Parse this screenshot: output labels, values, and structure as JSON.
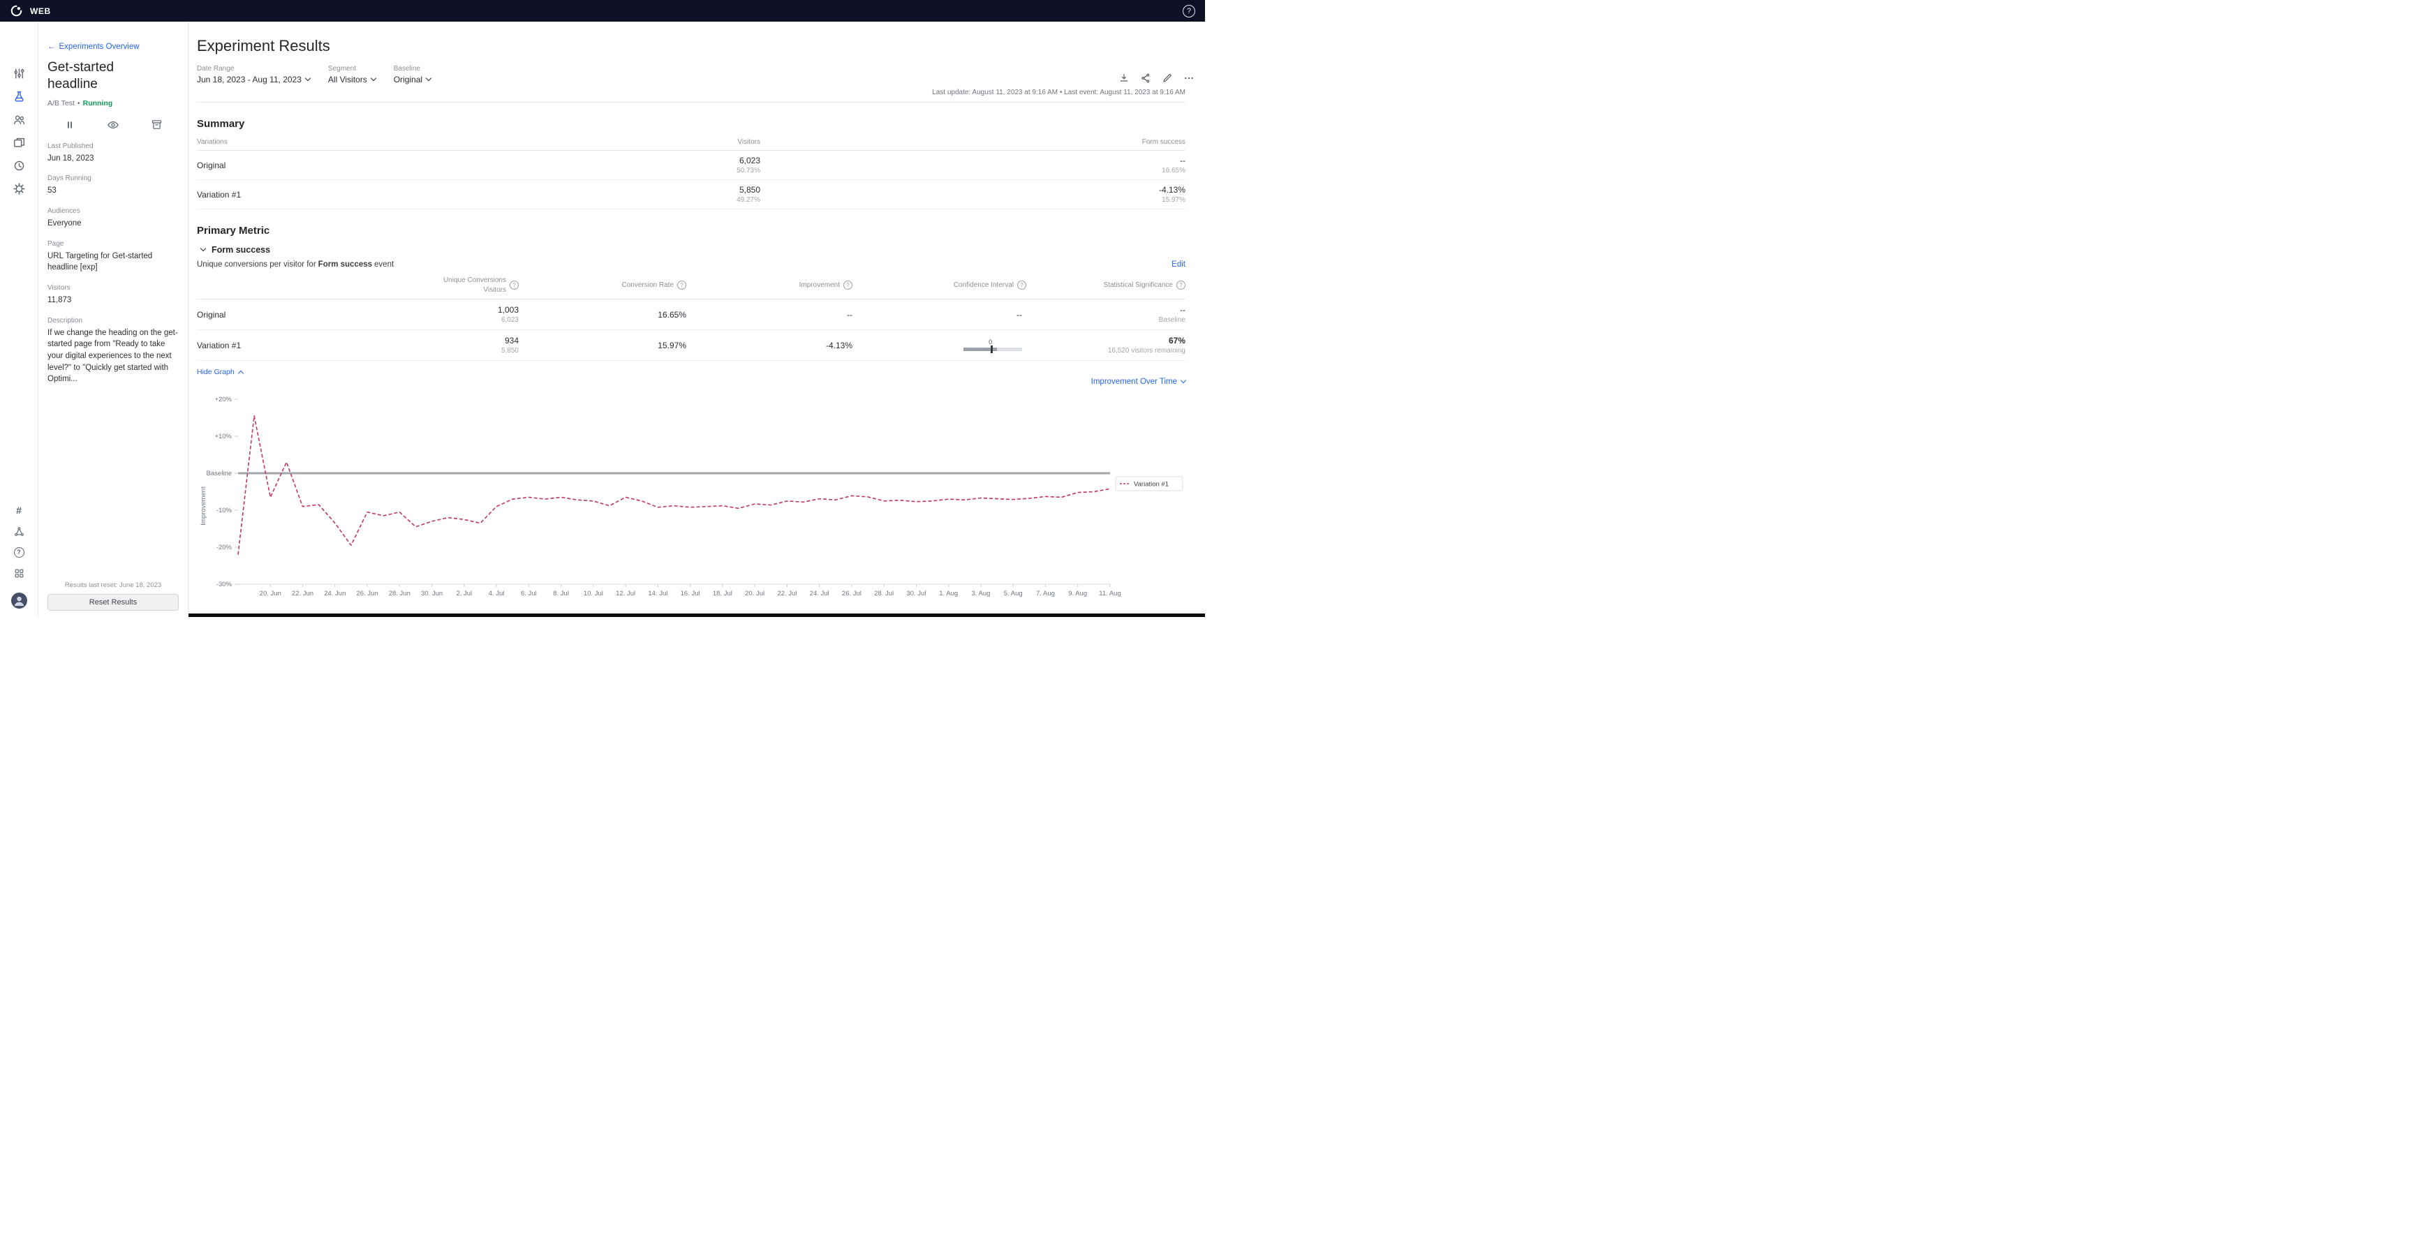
{
  "colors": {
    "accent": "#2563eb",
    "running_green": "#0f9d58",
    "chart_line": "#c13568",
    "baseline_gray": "#a2a7ad",
    "topbar_bg": "#0e1126"
  },
  "topbar": {
    "app_label": "WEB",
    "help_icon": "?"
  },
  "rail": {
    "top_icons": [
      "variations-icon",
      "flask-icon",
      "audiences-icon",
      "pages-icon",
      "history-icon",
      "settings-icon"
    ],
    "active_icon": "flask-icon",
    "bottom_icons": [
      "hash-icon",
      "network-icon",
      "help-icon",
      "apps-icon",
      "avatar"
    ],
    "hash_glyph": "#",
    "help_glyph": "?"
  },
  "sidebar": {
    "back_link": "Experiments Overview",
    "experiment_title": "Get-started headline",
    "experiment_type": "A/B Test",
    "status_separator": "•",
    "status": "Running",
    "fields": [
      {
        "label": "Last Published",
        "value": "Jun 18, 2023"
      },
      {
        "label": "Days Running",
        "value": "53"
      },
      {
        "label": "Audiences",
        "value": "Everyone"
      },
      {
        "label": "Page",
        "value": "URL Targeting for Get-started headline [exp]"
      },
      {
        "label": "Visitors",
        "value": "11,873"
      },
      {
        "label": "Description",
        "value": "If we change the heading on the get-started page from \"Ready to take your digital experiences to the next level?\" to \"Quickly get started with Optimi..."
      }
    ],
    "reset_note": "Results last reset: June 18, 2023",
    "reset_button": "Reset Results"
  },
  "header": {
    "title": "Experiment Results",
    "filters": [
      {
        "label": "Date Range",
        "value": "Jun 18, 2023 - Aug 11, 2023"
      },
      {
        "label": "Segment",
        "value": "All Visitors"
      },
      {
        "label": "Baseline",
        "value": "Original"
      }
    ],
    "action_icons": [
      "download-icon",
      "share-icon",
      "edit-icon",
      "more-icon"
    ],
    "last_update": "Last update: August 11, 2023 at 9:16 AM • Last event: August 11, 2023 at 9:16 AM"
  },
  "summary": {
    "title": "Summary",
    "columns": [
      "Variations",
      "Visitors",
      "Form success"
    ],
    "rows": [
      {
        "name": "Original",
        "visitors": "6,023",
        "visitors_sub": "50.73%",
        "metric": "--",
        "metric_sub": "16.65%"
      },
      {
        "name": "Variation #1",
        "visitors": "5,850",
        "visitors_sub": "49.27%",
        "metric": "-4.13%",
        "metric_sub": "15.97%"
      }
    ]
  },
  "primary_metric": {
    "section_title": "Primary Metric",
    "metric_name": "Form success",
    "desc_prefix": "Unique conversions per visitor for",
    "desc_metric": "Form success",
    "desc_suffix": "event",
    "edit_label": "Edit",
    "columns": {
      "conversions_line1": "Unique Conversions",
      "conversions_line2": "Visitors",
      "rate": "Conversion Rate",
      "improvement": "Improvement",
      "confidence": "Confidence Interval",
      "significance": "Statistical Significance"
    },
    "rows": [
      {
        "name": "Original",
        "conversions": "1,003",
        "visitors": "6,023",
        "rate": "16.65%",
        "improvement": "--",
        "confidence": "--",
        "significance": "--",
        "significance_sub": "Baseline"
      },
      {
        "name": "Variation #1",
        "conversions": "934",
        "visitors": "5,850",
        "rate": "15.97%",
        "improvement": "-4.13%",
        "ci_zero": "0",
        "significance": "67%",
        "significance_sub": "16,520 visitors remaining"
      }
    ],
    "hide_graph_label": "Hide Graph",
    "improvement_over_time_label": "Improvement Over Time"
  },
  "chart_data": {
    "type": "line",
    "title": "",
    "xlabel": "",
    "ylabel": "Improvement",
    "ylim": [
      -30,
      20
    ],
    "grid": false,
    "baseline_label": "Baseline",
    "baseline_color": "#a2a7ad",
    "y_ticks": [
      {
        "label": "+20%",
        "value": 20
      },
      {
        "label": "+10%",
        "value": 10
      },
      {
        "label": "Baseline",
        "value": 0
      },
      {
        "label": "-10%",
        "value": -10
      },
      {
        "label": "-20%",
        "value": -20
      },
      {
        "label": "-30%",
        "value": -30
      }
    ],
    "x": [
      "18. Jun",
      "19. Jun",
      "20. Jun",
      "21. Jun",
      "22. Jun",
      "23. Jun",
      "24. Jun",
      "25. Jun",
      "26. Jun",
      "27. Jun",
      "28. Jun",
      "29. Jun",
      "30. Jun",
      "1. Jul",
      "2. Jul",
      "3. Jul",
      "4. Jul",
      "5. Jul",
      "6. Jul",
      "7. Jul",
      "8. Jul",
      "9. Jul",
      "10. Jul",
      "11. Jul",
      "12. Jul",
      "13. Jul",
      "14. Jul",
      "15. Jul",
      "16. Jul",
      "17. Jul",
      "18. Jul",
      "19. Jul",
      "20. Jul",
      "21. Jul",
      "22. Jul",
      "23. Jul",
      "24. Jul",
      "25. Jul",
      "26. Jul",
      "27. Jul",
      "28. Jul",
      "29. Jul",
      "30. Jul",
      "31. Jul",
      "1. Aug",
      "2. Aug",
      "3. Aug",
      "4. Aug",
      "5. Aug",
      "6. Aug",
      "7. Aug",
      "8. Aug",
      "9. Aug",
      "10. Aug",
      "11. Aug"
    ],
    "x_ticks": [
      "20. Jun",
      "22. Jun",
      "24. Jun",
      "26. Jun",
      "28. Jun",
      "30. Jun",
      "2. Jul",
      "4. Jul",
      "6. Jul",
      "8. Jul",
      "10. Jul",
      "12. Jul",
      "14. Jul",
      "16. Jul",
      "18. Jul",
      "20. Jul",
      "22. Jul",
      "24. Jul",
      "26. Jul",
      "28. Jul",
      "30. Jul",
      "1. Aug",
      "3. Aug",
      "5. Aug",
      "7. Aug",
      "9. Aug",
      "11. Aug"
    ],
    "series": [
      {
        "name": "Variation #1",
        "color": "#c13568",
        "dashed": true,
        "values": [
          -22.0,
          15.5,
          -6.5,
          3.0,
          -9.0,
          -8.5,
          -13.5,
          -19.5,
          -10.5,
          -11.5,
          -10.5,
          -14.5,
          -13.0,
          -12.0,
          -12.5,
          -13.5,
          -9.0,
          -7.0,
          -6.5,
          -7.0,
          -6.5,
          -7.2,
          -7.5,
          -8.8,
          -6.5,
          -7.5,
          -9.2,
          -8.8,
          -9.2,
          -9.0,
          -8.8,
          -9.5,
          -8.3,
          -8.6,
          -7.5,
          -7.8,
          -6.9,
          -7.2,
          -6.1,
          -6.4,
          -7.5,
          -7.3,
          -7.7,
          -7.5,
          -7.0,
          -7.2,
          -6.7,
          -6.9,
          -7.1,
          -6.8,
          -6.3,
          -6.5,
          -5.2,
          -5.0,
          -4.2
        ]
      }
    ],
    "legend": {
      "position": "right",
      "entries": [
        "Variation #1"
      ]
    }
  }
}
